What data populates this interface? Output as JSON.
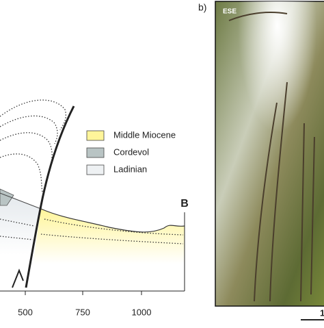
{
  "panel_b_label": "b)",
  "section_end_label": "B",
  "photo_direction": "ESE",
  "legend": [
    {
      "label": "Middle Miocene",
      "color": "#fff59a"
    },
    {
      "label": "Cordevol",
      "color": "#b9c4c4"
    },
    {
      "label": "Ladinian",
      "color": "#eef1f3"
    }
  ],
  "axis_ticks": [
    "500",
    "750",
    "1000"
  ],
  "photo_scale_label": "1"
}
